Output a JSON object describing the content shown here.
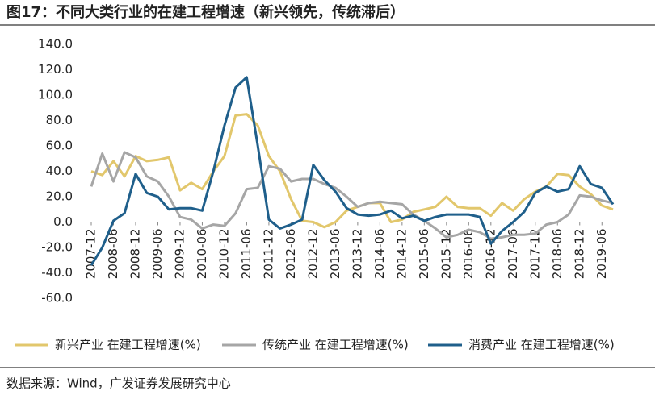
{
  "chart_data": {
    "type": "line",
    "title": "图17：不同大类行业的在建工程增速（新兴领先，传统滞后）",
    "source": "数据来源：Wind，广发证券发展研究中心",
    "categories": [
      "2007-12",
      null,
      "2008-06",
      null,
      "2008-12",
      null,
      "2009-06",
      null,
      "2009-12",
      null,
      "2010-06",
      null,
      "2010-12",
      null,
      "2011-06",
      null,
      "2011-12",
      null,
      "2012-06",
      null,
      "2012-12",
      null,
      "2013-06",
      null,
      "2013-12",
      null,
      "2014-06",
      null,
      "2014-12",
      null,
      "2015-06",
      null,
      "2015-12",
      null,
      "2016-06",
      null,
      "2016-12",
      null,
      "2017-06",
      null,
      "2017-12",
      null,
      "2018-06",
      null,
      "2018-12",
      null,
      "2019-06",
      null
    ],
    "series": [
      {
        "name": "新兴产业 在建工程增速(%)",
        "color": "#E2C76C",
        "values": [
          40,
          37,
          48,
          36,
          52,
          48,
          49,
          51,
          25,
          31,
          26,
          40,
          52,
          84,
          85,
          76,
          52,
          40,
          18,
          1,
          0,
          -4,
          0,
          9,
          12,
          15,
          15,
          0,
          2,
          8,
          10,
          12,
          20,
          12,
          11,
          11,
          5,
          15,
          9,
          18,
          24,
          28,
          38,
          37,
          28,
          22,
          13,
          10
        ]
      },
      {
        "name": "传统产业 在建工程增速(%)",
        "color": "#A6A6A6",
        "values": [
          28,
          54,
          32,
          55,
          51,
          36,
          32,
          20,
          4,
          2,
          -5,
          -2,
          -3,
          7,
          26,
          27,
          44,
          42,
          32,
          34,
          34,
          30,
          27,
          20,
          12,
          15,
          16,
          15,
          14,
          6,
          1,
          -5,
          -12,
          -10,
          -6,
          -8,
          -13,
          -12,
          -10,
          -10,
          -9,
          -2,
          0,
          6,
          21,
          20,
          17,
          15
        ]
      },
      {
        "name": "消费产业 在建工程增速(%)",
        "color": "#1F5F8B",
        "values": [
          -34,
          -20,
          1,
          7,
          38,
          23,
          20,
          10,
          11,
          11,
          9,
          40,
          76,
          106,
          114,
          60,
          2,
          -5,
          -2,
          2,
          45,
          33,
          24,
          11,
          6,
          5,
          6,
          9,
          3,
          5,
          1,
          4,
          6,
          6,
          6,
          4,
          -17,
          -7,
          0,
          8,
          23,
          28,
          24,
          26,
          44,
          30,
          27,
          14
        ]
      }
    ],
    "ylim": [
      -60,
      140
    ],
    "yticks": [
      {
        "value": -60,
        "label": "-60.0"
      },
      {
        "value": -40,
        "label": "-40.0"
      },
      {
        "value": -20,
        "label": "-20.0"
      },
      {
        "value": 0,
        "label": "0.0"
      },
      {
        "value": 20,
        "label": "20.0"
      },
      {
        "value": 40,
        "label": "40.0"
      },
      {
        "value": 60,
        "label": "60.0"
      },
      {
        "value": 80,
        "label": "80.0"
      },
      {
        "value": 100,
        "label": "100.0"
      },
      {
        "value": 120,
        "label": "120.0"
      },
      {
        "value": 140,
        "label": "140.0"
      }
    ],
    "grid": false
  }
}
